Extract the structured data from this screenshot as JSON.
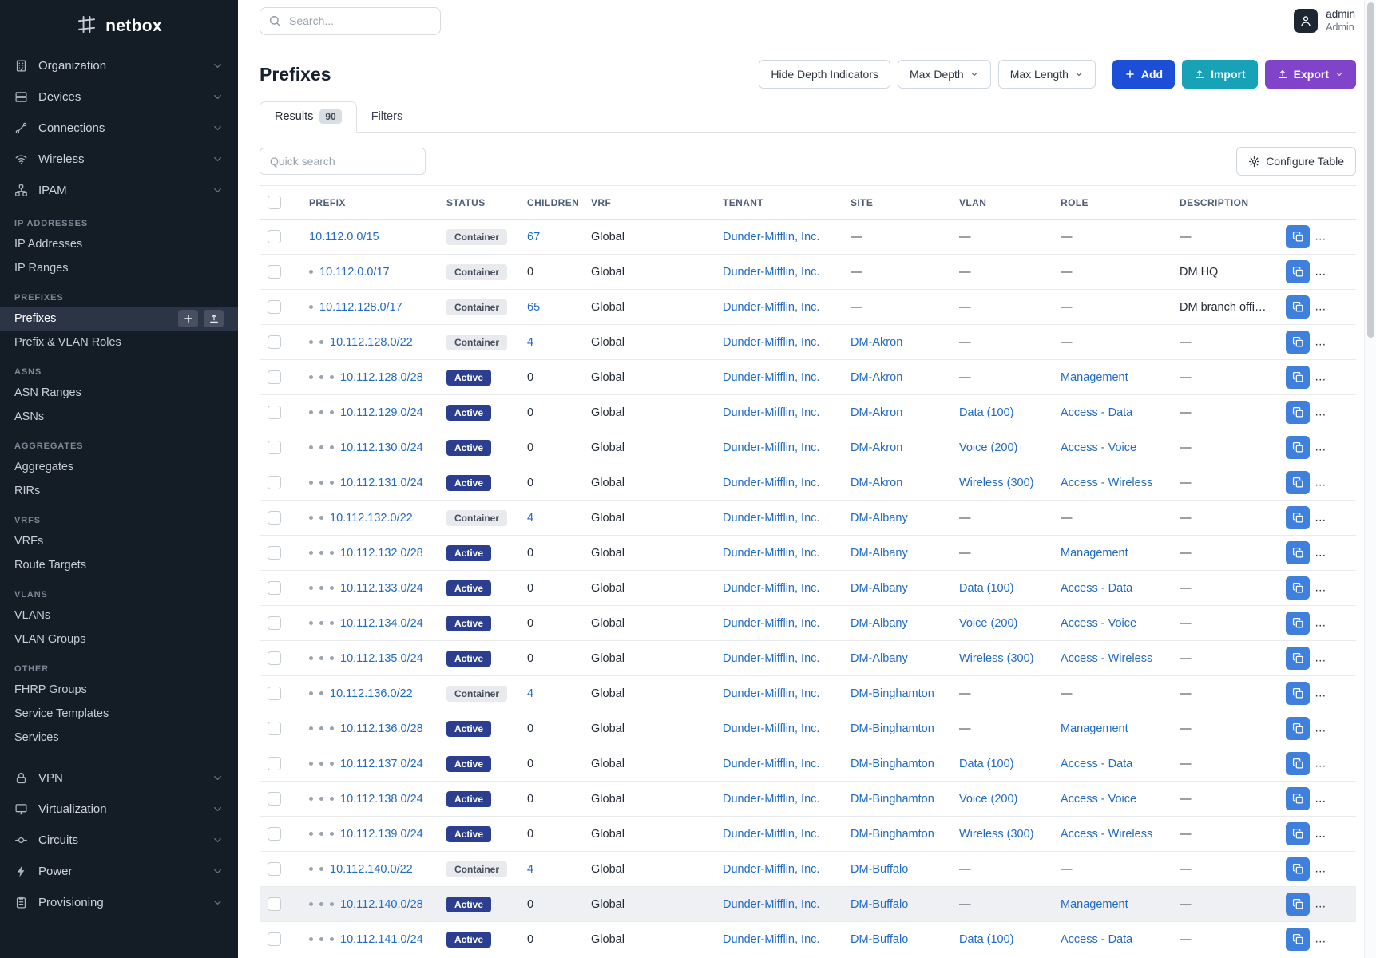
{
  "colors": {
    "sidebar_bg": "#141c26",
    "accent_blue": "#206bc4",
    "active_badge": "#2c3e90",
    "container_badge_bg": "#e8eaee",
    "add_button": "#1d4ed8",
    "import_button": "#17a2b8",
    "export_button": "#8143c9",
    "edit_button": "#f76707",
    "copy_button": "#3f80dd"
  },
  "sidebar": {
    "logo_text": "netbox",
    "top_items": [
      {
        "label": "Organization",
        "icon": "building-icon"
      },
      {
        "label": "Devices",
        "icon": "devices-icon"
      },
      {
        "label": "Connections",
        "icon": "connections-icon"
      },
      {
        "label": "Wireless",
        "icon": "wireless-icon"
      },
      {
        "label": "IPAM",
        "icon": "ipam-icon"
      }
    ],
    "groups": [
      {
        "heading": "IP ADDRESSES",
        "items": [
          {
            "label": "IP Addresses"
          },
          {
            "label": "IP Ranges"
          }
        ]
      },
      {
        "heading": "PREFIXES",
        "items": [
          {
            "label": "Prefixes",
            "active": true,
            "quick_buttons": [
              "add",
              "import"
            ]
          },
          {
            "label": "Prefix & VLAN Roles"
          }
        ]
      },
      {
        "heading": "ASNS",
        "items": [
          {
            "label": "ASN Ranges"
          },
          {
            "label": "ASNs"
          }
        ]
      },
      {
        "heading": "AGGREGATES",
        "items": [
          {
            "label": "Aggregates"
          },
          {
            "label": "RIRs"
          }
        ]
      },
      {
        "heading": "VRFS",
        "items": [
          {
            "label": "VRFs"
          },
          {
            "label": "Route Targets"
          }
        ]
      },
      {
        "heading": "VLANS",
        "items": [
          {
            "label": "VLANs"
          },
          {
            "label": "VLAN Groups"
          }
        ]
      },
      {
        "heading": "OTHER",
        "items": [
          {
            "label": "FHRP Groups"
          },
          {
            "label": "Service Templates"
          },
          {
            "label": "Services"
          }
        ]
      }
    ],
    "bottom_items": [
      {
        "label": "VPN",
        "icon": "vpn-icon"
      },
      {
        "label": "Virtualization",
        "icon": "virtualization-icon"
      },
      {
        "label": "Circuits",
        "icon": "circuits-icon"
      },
      {
        "label": "Power",
        "icon": "power-icon"
      },
      {
        "label": "Provisioning",
        "icon": "provisioning-icon"
      }
    ]
  },
  "topbar": {
    "search_placeholder": "Search...",
    "username": "admin",
    "user_role": "Admin"
  },
  "page": {
    "title": "Prefixes"
  },
  "toolbar": {
    "hide_depth": "Hide Depth Indicators",
    "max_depth": "Max Depth",
    "max_length": "Max Length",
    "add": "Add",
    "import": "Import",
    "export": "Export"
  },
  "tabs": {
    "results_label": "Results",
    "results_count": "90",
    "filters_label": "Filters"
  },
  "table_controls": {
    "quick_search_placeholder": "Quick search",
    "configure_table_label": "Configure Table"
  },
  "table": {
    "columns": [
      "PREFIX",
      "STATUS",
      "CHILDREN",
      "VRF",
      "TENANT",
      "SITE",
      "VLAN",
      "ROLE",
      "DESCRIPTION"
    ],
    "rows": [
      {
        "depth": 0,
        "prefix": "10.112.0.0/15",
        "status": "Container",
        "children": "67",
        "vrf": "Global",
        "tenant": "Dunder-Mifflin, Inc.",
        "site": "—",
        "vlan": "—",
        "role": "—",
        "description": "—"
      },
      {
        "depth": 1,
        "prefix": "10.112.0.0/17",
        "status": "Container",
        "children": "0",
        "vrf": "Global",
        "tenant": "Dunder-Mifflin, Inc.",
        "site": "—",
        "vlan": "—",
        "role": "—",
        "description": "DM HQ"
      },
      {
        "depth": 1,
        "prefix": "10.112.128.0/17",
        "status": "Container",
        "children": "65",
        "vrf": "Global",
        "tenant": "Dunder-Mifflin, Inc.",
        "site": "—",
        "vlan": "—",
        "role": "—",
        "description": "DM branch offices"
      },
      {
        "depth": 2,
        "prefix": "10.112.128.0/22",
        "status": "Container",
        "children": "4",
        "vrf": "Global",
        "tenant": "Dunder-Mifflin, Inc.",
        "site": "DM-Akron",
        "vlan": "—",
        "role": "—",
        "description": "—"
      },
      {
        "depth": 3,
        "prefix": "10.112.128.0/28",
        "status": "Active",
        "children": "0",
        "vrf": "Global",
        "tenant": "Dunder-Mifflin, Inc.",
        "site": "DM-Akron",
        "vlan": "—",
        "role": "Management",
        "description": "—"
      },
      {
        "depth": 3,
        "prefix": "10.112.129.0/24",
        "status": "Active",
        "children": "0",
        "vrf": "Global",
        "tenant": "Dunder-Mifflin, Inc.",
        "site": "DM-Akron",
        "vlan": "Data (100)",
        "role": "Access - Data",
        "description": "—"
      },
      {
        "depth": 3,
        "prefix": "10.112.130.0/24",
        "status": "Active",
        "children": "0",
        "vrf": "Global",
        "tenant": "Dunder-Mifflin, Inc.",
        "site": "DM-Akron",
        "vlan": "Voice (200)",
        "role": "Access - Voice",
        "description": "—"
      },
      {
        "depth": 3,
        "prefix": "10.112.131.0/24",
        "status": "Active",
        "children": "0",
        "vrf": "Global",
        "tenant": "Dunder-Mifflin, Inc.",
        "site": "DM-Akron",
        "vlan": "Wireless (300)",
        "role": "Access - Wireless",
        "description": "—"
      },
      {
        "depth": 2,
        "prefix": "10.112.132.0/22",
        "status": "Container",
        "children": "4",
        "vrf": "Global",
        "tenant": "Dunder-Mifflin, Inc.",
        "site": "DM-Albany",
        "vlan": "—",
        "role": "—",
        "description": "—"
      },
      {
        "depth": 3,
        "prefix": "10.112.132.0/28",
        "status": "Active",
        "children": "0",
        "vrf": "Global",
        "tenant": "Dunder-Mifflin, Inc.",
        "site": "DM-Albany",
        "vlan": "—",
        "role": "Management",
        "description": "—"
      },
      {
        "depth": 3,
        "prefix": "10.112.133.0/24",
        "status": "Active",
        "children": "0",
        "vrf": "Global",
        "tenant": "Dunder-Mifflin, Inc.",
        "site": "DM-Albany",
        "vlan": "Data (100)",
        "role": "Access - Data",
        "description": "—"
      },
      {
        "depth": 3,
        "prefix": "10.112.134.0/24",
        "status": "Active",
        "children": "0",
        "vrf": "Global",
        "tenant": "Dunder-Mifflin, Inc.",
        "site": "DM-Albany",
        "vlan": "Voice (200)",
        "role": "Access - Voice",
        "description": "—"
      },
      {
        "depth": 3,
        "prefix": "10.112.135.0/24",
        "status": "Active",
        "children": "0",
        "vrf": "Global",
        "tenant": "Dunder-Mifflin, Inc.",
        "site": "DM-Albany",
        "vlan": "Wireless (300)",
        "role": "Access - Wireless",
        "description": "—"
      },
      {
        "depth": 2,
        "prefix": "10.112.136.0/22",
        "status": "Container",
        "children": "4",
        "vrf": "Global",
        "tenant": "Dunder-Mifflin, Inc.",
        "site": "DM-Binghamton",
        "vlan": "—",
        "role": "—",
        "description": "—"
      },
      {
        "depth": 3,
        "prefix": "10.112.136.0/28",
        "status": "Active",
        "children": "0",
        "vrf": "Global",
        "tenant": "Dunder-Mifflin, Inc.",
        "site": "DM-Binghamton",
        "vlan": "—",
        "role": "Management",
        "description": "—"
      },
      {
        "depth": 3,
        "prefix": "10.112.137.0/24",
        "status": "Active",
        "children": "0",
        "vrf": "Global",
        "tenant": "Dunder-Mifflin, Inc.",
        "site": "DM-Binghamton",
        "vlan": "Data (100)",
        "role": "Access - Data",
        "description": "—"
      },
      {
        "depth": 3,
        "prefix": "10.112.138.0/24",
        "status": "Active",
        "children": "0",
        "vrf": "Global",
        "tenant": "Dunder-Mifflin, Inc.",
        "site": "DM-Binghamton",
        "vlan": "Voice (200)",
        "role": "Access - Voice",
        "description": "—"
      },
      {
        "depth": 3,
        "prefix": "10.112.139.0/24",
        "status": "Active",
        "children": "0",
        "vrf": "Global",
        "tenant": "Dunder-Mifflin, Inc.",
        "site": "DM-Binghamton",
        "vlan": "Wireless (300)",
        "role": "Access - Wireless",
        "description": "—"
      },
      {
        "depth": 2,
        "prefix": "10.112.140.0/22",
        "status": "Container",
        "children": "4",
        "vrf": "Global",
        "tenant": "Dunder-Mifflin, Inc.",
        "site": "DM-Buffalo",
        "vlan": "—",
        "role": "—",
        "description": "—"
      },
      {
        "depth": 3,
        "prefix": "10.112.140.0/28",
        "status": "Active",
        "children": "0",
        "vrf": "Global",
        "tenant": "Dunder-Mifflin, Inc.",
        "site": "DM-Buffalo",
        "vlan": "—",
        "role": "Management",
        "description": "—",
        "highlighted": true
      },
      {
        "depth": 3,
        "prefix": "10.112.141.0/24",
        "status": "Active",
        "children": "0",
        "vrf": "Global",
        "tenant": "Dunder-Mifflin, Inc.",
        "site": "DM-Buffalo",
        "vlan": "Data (100)",
        "role": "Access - Data",
        "description": "—"
      }
    ]
  }
}
